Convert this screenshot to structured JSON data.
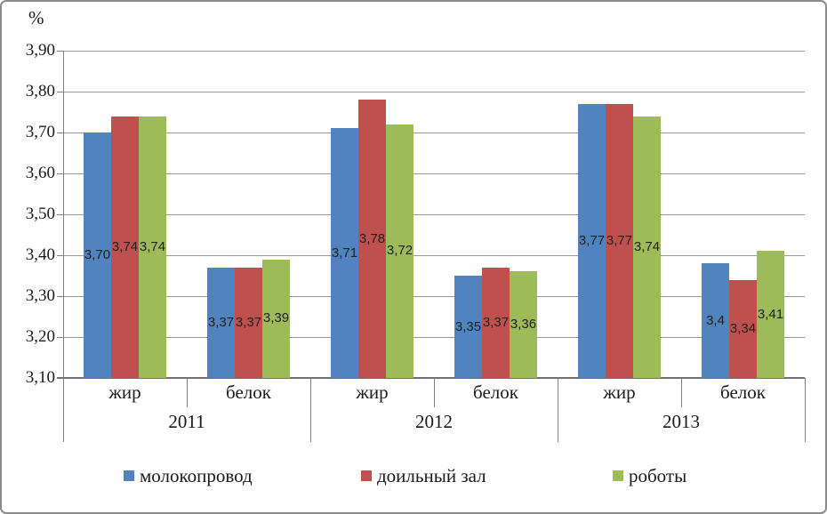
{
  "chart_data": {
    "type": "bar",
    "title": "",
    "ylabel": "%",
    "axis": {
      "ymin": 3.1,
      "ymax": 3.9,
      "tick_step": 0.1,
      "tick_labels": [
        "3,90",
        "3,80",
        "3,70",
        "3,60",
        "3,50",
        "3,40",
        "3,30",
        "3,20",
        "3,10"
      ],
      "grid": true,
      "decimal_separator": ","
    },
    "series": [
      {
        "name": "молокопровод",
        "color": "#5184BE"
      },
      {
        "name": "доильный зал",
        "color": "#C0504D"
      },
      {
        "name": "роботы",
        "color": "#9EBB59"
      }
    ],
    "groups": [
      {
        "year": "2011",
        "categories": [
          {
            "label": "жир",
            "values": [
              3.7,
              3.74,
              3.74
            ],
            "value_labels": [
              "3,70",
              "3,74",
              "3,74"
            ]
          },
          {
            "label": "белок",
            "values": [
              3.37,
              3.37,
              3.39
            ],
            "value_labels": [
              "3,37",
              "3,37",
              "3,39"
            ]
          }
        ]
      },
      {
        "year": "2012",
        "categories": [
          {
            "label": "жир",
            "values": [
              3.71,
              3.78,
              3.72
            ],
            "value_labels": [
              "3,71",
              "3,78",
              "3,72"
            ]
          },
          {
            "label": "белок",
            "values": [
              3.35,
              3.37,
              3.36
            ],
            "value_labels": [
              "3,35",
              "3,37",
              "3,36"
            ]
          }
        ]
      },
      {
        "year": "2013",
        "categories": [
          {
            "label": "жир",
            "values": [
              3.77,
              3.77,
              3.74
            ],
            "value_labels": [
              "3,77",
              "3,77",
              "3,74"
            ]
          },
          {
            "label": "белок",
            "values": [
              3.38,
              3.34,
              3.41
            ],
            "value_labels": [
              "3,4",
              "3,34",
              "3,41"
            ]
          }
        ]
      }
    ],
    "legend_position": "bottom"
  }
}
